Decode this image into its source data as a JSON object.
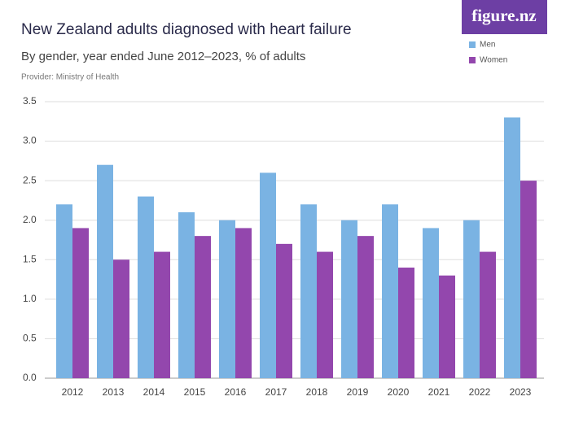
{
  "chart_data": {
    "type": "bar",
    "title": "New Zealand adults diagnosed with heart failure",
    "subtitle": "By gender, year ended June 2012–2023, % of adults",
    "provider": "Provider: Ministry of Health",
    "logo": "figure.nz",
    "categories": [
      "2012",
      "2013",
      "2014",
      "2015",
      "2016",
      "2017",
      "2018",
      "2019",
      "2020",
      "2021",
      "2022",
      "2023"
    ],
    "series": [
      {
        "name": "Men",
        "color": "#7ab3e3",
        "values": [
          2.2,
          2.7,
          2.3,
          2.1,
          2.0,
          2.6,
          2.2,
          2.0,
          2.2,
          1.9,
          2.0,
          3.3
        ]
      },
      {
        "name": "Women",
        "color": "#9347ad",
        "values": [
          1.9,
          1.5,
          1.6,
          1.8,
          1.9,
          1.7,
          1.6,
          1.8,
          1.4,
          1.3,
          1.6,
          2.5
        ]
      }
    ],
    "ylim": [
      0,
      3.5
    ],
    "yticks": [
      {
        "value": 0,
        "label": "0.0"
      },
      0.5,
      {
        "value": 1,
        "label": "1.0"
      },
      1.5,
      {
        "value": 2,
        "label": "2.0"
      },
      2.5,
      {
        "value": 3,
        "label": "3.0"
      },
      3.5
    ],
    "grid": true,
    "legend": "top-right"
  }
}
